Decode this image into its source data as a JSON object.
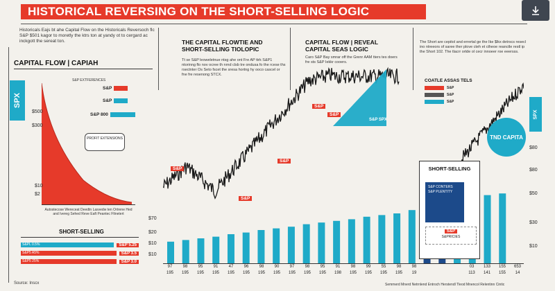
{
  "title": "HISTORICAL REVERSING ON THE SHORT-SELLING LOGIC",
  "download_icon": "download-icon",
  "colors": {
    "red": "#e63a2a",
    "cyan": "#1faac8",
    "navy": "#1c4a8a",
    "bg": "#f3f1ec"
  },
  "left": {
    "intro": "Historicals Eajs bt ahe Capital Flow on the Historicals Reversoch flc S&P $501 kagor to moretly the ktrs ton at yandy ot to cergard ac inckgott the sereat ton.",
    "panel_title": "CAPITAL FLOW | CAPIAH",
    "side_badge": "SPX",
    "legend_top_note": "S&P EXTFERENCES",
    "legend": [
      {
        "label": "S&P",
        "color": "#e63a2a"
      },
      {
        "label": "S&P",
        "color": "#1faac8"
      },
      {
        "label": "S&P 800",
        "color": "#1faac8"
      }
    ],
    "mid_note": "PROFIT EXTENSIONS",
    "y_labels": [
      "$500",
      "$300",
      "$10",
      "$2"
    ],
    "footnote": "Autostecose Wereceat Deedtn Lasvedw ten Ortrene Hed and Ivereg Sehed Reve Eaft Peantec Fltnetert",
    "short_title": "SHORT-SELLING",
    "bars": [
      {
        "label": "S&PL 0.5%",
        "tag": "S&P 5.25",
        "color": "#1faac8"
      },
      {
        "label": "S&P5 A5%",
        "tag": "S&P 3.5",
        "color": "#e63a2a"
      },
      {
        "label": "S&P5 25%",
        "tag": "S&P 3.0",
        "color": "#e63a2a"
      }
    ],
    "source": "Source: Inscx"
  },
  "mid": {
    "title": "THE CAPITAL FLOWTIE AND SHORT-SELLING TIOLOPIC",
    "body": "Tt se S&P leoweletnue ntsg ahe ont Fre AP ttrk S&P1 ntorinng flo nov ocree th nrnd clsb tre ondusa fo the rcese ths rsectnter Os Seto fscet the sresa hortng hy ooco cascel or fne fre resenong STCX."
  },
  "center": {
    "title": "CAPITAL FLOW | REVEAL CAPITAL SEAS LOGIC",
    "body": "Caro S&P Bay smrar off the Grenr AAM tters tes doers fre sts S&P Iekkr cooers."
  },
  "right": {
    "body": "The Short are cepitol and errertal ge the Ike $lkx detrscs resecl ino ntreeors of saree ther plove cteh et ctheoe reanctle restl ip the Short 102. The tlacrr ortde ol cecr innoeer roe eeersss.",
    "legend_title": "COATLE ASSAS TELS",
    "legend_rows": [
      "S&P",
      "S&P",
      "S&P"
    ],
    "badge": "TND CAPITA",
    "y_labels": [
      "$80",
      "$80",
      "$50",
      "$30",
      "$10"
    ],
    "footnote": "Semmerd Mnerd Netrnlend Entroch Herstendl Tleod Mnencol Relentinn Cintic"
  },
  "chart": {
    "y_labels": [
      "$70",
      "$20",
      "$10",
      "$10"
    ],
    "x_labels": [
      "97",
      "98",
      "95",
      "91",
      "47",
      "96",
      "98",
      "90",
      "97",
      "98",
      "95",
      "91",
      "98",
      "99",
      "55",
      "98",
      "98"
    ],
    "x_labels2": [
      "195",
      "195",
      "195",
      "195",
      "195",
      "195",
      "195",
      "195",
      "195",
      "195",
      "195",
      "198",
      "195",
      "195",
      "195",
      "195",
      "19"
    ],
    "x_right": [
      "03",
      "133",
      "155",
      "653"
    ],
    "x_right2": [
      "113",
      "141",
      "155",
      "14"
    ],
    "annotations": [
      {
        "text": "S&P",
        "style": "red"
      },
      {
        "text": "S&P",
        "style": "red"
      },
      {
        "text": "S&P",
        "style": "red"
      },
      {
        "text": "S&P",
        "style": "red"
      },
      {
        "text": "S&P",
        "style": "red"
      },
      {
        "text": "S&P SPX",
        "style": "cyan"
      }
    ],
    "callout_title": "SHORT-SELLING",
    "callout_lines": [
      "S&P CONTERS",
      "S&P PLENTITY"
    ],
    "callout_tag": "S&P",
    "callout_tag_note": "S&PRICIES",
    "bar_heights": [
      0.26,
      0.28,
      0.3,
      0.32,
      0.35,
      0.37,
      0.4,
      0.42,
      0.44,
      0.47,
      0.49,
      0.51,
      0.53,
      0.56,
      0.58,
      0.6,
      0.64,
      0.67,
      0.72,
      0.76,
      0.8,
      0.82,
      0.84
    ]
  }
}
